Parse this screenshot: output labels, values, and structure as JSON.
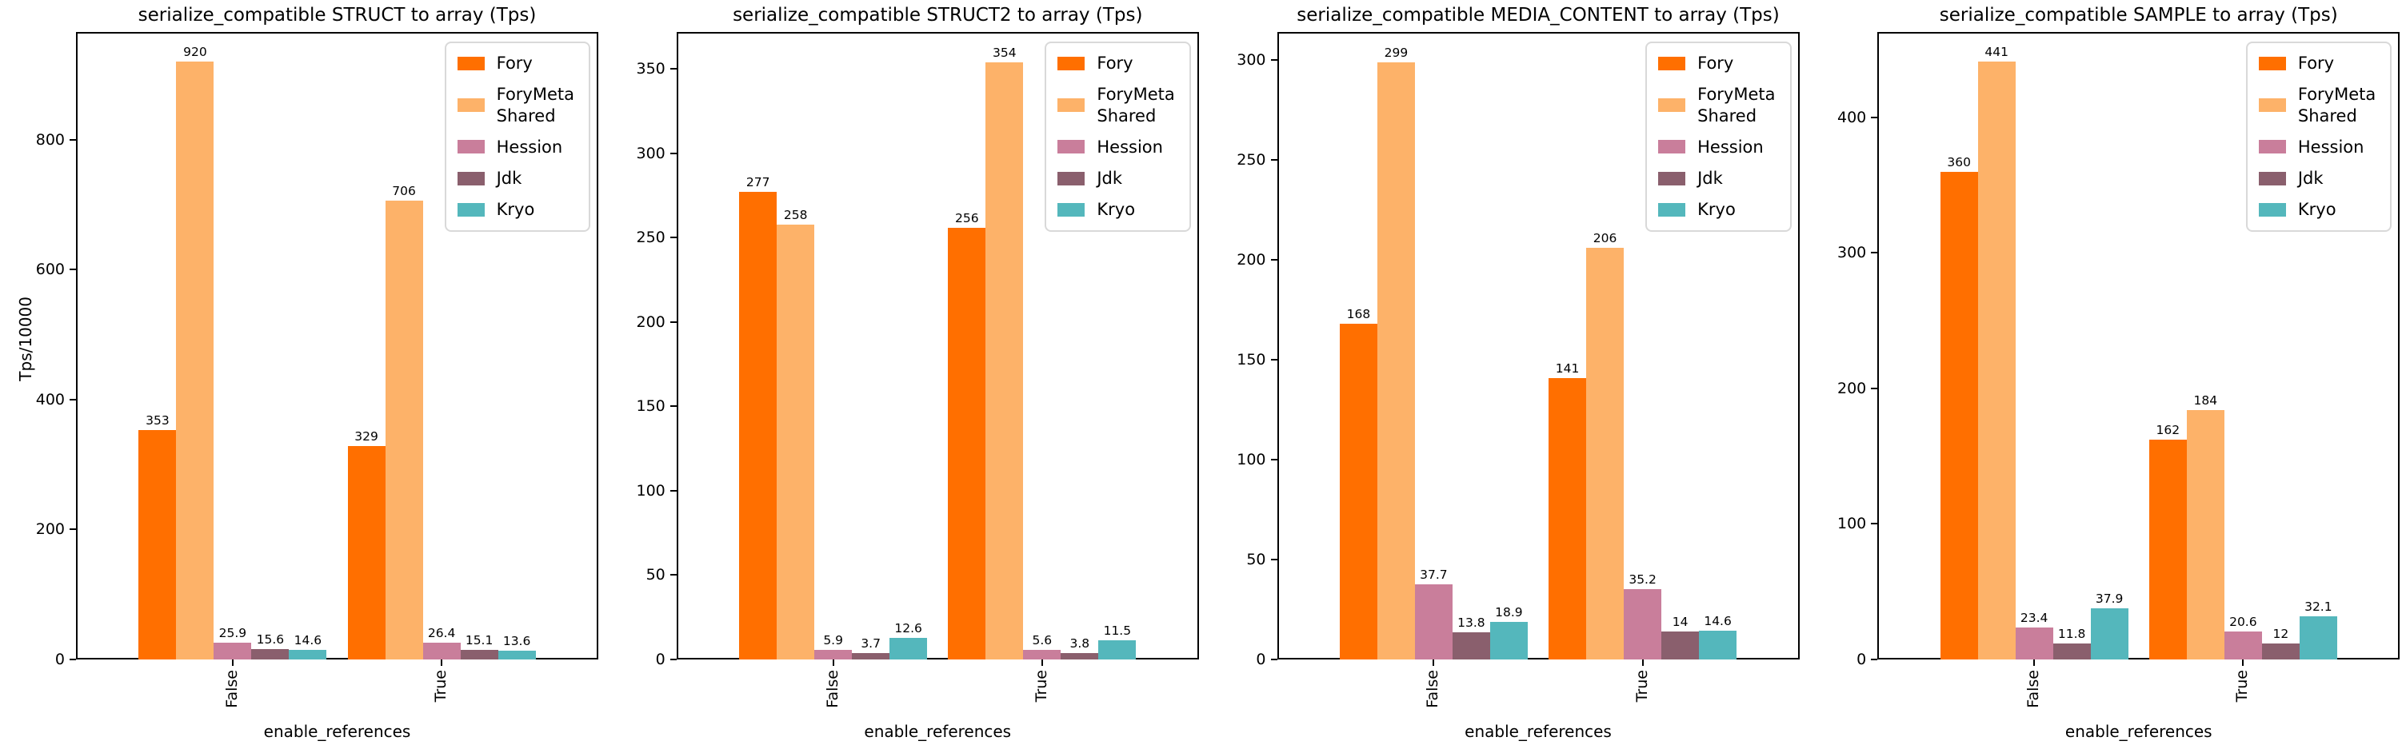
{
  "figure": {
    "background": "#ffffff",
    "axis_color": "#000000",
    "legend_position": "upper right",
    "legend_labels": [
      "Fory",
      "ForyMeta\nShared",
      "Hession",
      "Jdk",
      "Kryo"
    ],
    "series_names": [
      "Fory",
      "ForyMetaShared",
      "Hession",
      "Jdk",
      "Kryo"
    ],
    "colors": [
      "#ff6f00",
      "#fdb269",
      "#c97e9b",
      "#8a5f6d",
      "#54b7bc"
    ]
  },
  "chart_data": [
    {
      "type": "bar",
      "title": "serialize_compatible STRUCT to array (Tps)",
      "xlabel": "enable_references",
      "ylabel": "Tps/10000",
      "categories": [
        "False",
        "True"
      ],
      "series": [
        {
          "name": "Fory",
          "values": [
            353,
            329
          ]
        },
        {
          "name": "ForyMetaShared",
          "values": [
            920,
            706
          ]
        },
        {
          "name": "Hession",
          "values": [
            25.9,
            26.4
          ]
        },
        {
          "name": "Jdk",
          "values": [
            15.6,
            15.1
          ]
        },
        {
          "name": "Kryo",
          "values": [
            14.6,
            13.6
          ]
        }
      ],
      "yticks": [
        0,
        200,
        400,
        600,
        800
      ],
      "ylim": [
        0,
        966
      ],
      "grid": false,
      "legend_position": "upper right"
    },
    {
      "type": "bar",
      "title": "serialize_compatible STRUCT2 to array (Tps)",
      "xlabel": "enable_references",
      "ylabel": "",
      "categories": [
        "False",
        "True"
      ],
      "series": [
        {
          "name": "Fory",
          "values": [
            277,
            256
          ]
        },
        {
          "name": "ForyMetaShared",
          "values": [
            258,
            354
          ]
        },
        {
          "name": "Hession",
          "values": [
            5.9,
            5.6
          ]
        },
        {
          "name": "Jdk",
          "values": [
            3.7,
            3.8
          ]
        },
        {
          "name": "Kryo",
          "values": [
            12.6,
            11.5
          ]
        }
      ],
      "yticks": [
        0,
        50,
        100,
        150,
        200,
        250,
        300,
        350
      ],
      "ylim": [
        0,
        372
      ],
      "grid": false,
      "legend_position": "upper right"
    },
    {
      "type": "bar",
      "title": "serialize_compatible MEDIA_CONTENT to array (Tps)",
      "xlabel": "enable_references",
      "ylabel": "",
      "categories": [
        "False",
        "True"
      ],
      "series": [
        {
          "name": "Fory",
          "values": [
            168,
            141
          ]
        },
        {
          "name": "ForyMetaShared",
          "values": [
            299,
            206
          ]
        },
        {
          "name": "Hession",
          "values": [
            37.7,
            35.2
          ]
        },
        {
          "name": "Jdk",
          "values": [
            13.8,
            14
          ]
        },
        {
          "name": "Kryo",
          "values": [
            18.9,
            14.6
          ]
        }
      ],
      "yticks": [
        0,
        50,
        100,
        150,
        200,
        250,
        300
      ],
      "ylim": [
        0,
        314
      ],
      "grid": false,
      "legend_position": "upper right"
    },
    {
      "type": "bar",
      "title": "serialize_compatible SAMPLE to array (Tps)",
      "xlabel": "enable_references",
      "ylabel": "",
      "categories": [
        "False",
        "True"
      ],
      "series": [
        {
          "name": "Fory",
          "values": [
            360,
            162
          ]
        },
        {
          "name": "ForyMetaShared",
          "values": [
            441,
            184
          ]
        },
        {
          "name": "Hession",
          "values": [
            23.4,
            20.6
          ]
        },
        {
          "name": "Jdk",
          "values": [
            11.8,
            12
          ]
        },
        {
          "name": "Kryo",
          "values": [
            37.9,
            32.1
          ]
        }
      ],
      "yticks": [
        0,
        100,
        200,
        300,
        400
      ],
      "ylim": [
        0,
        463
      ],
      "grid": false,
      "legend_position": "upper right"
    }
  ]
}
